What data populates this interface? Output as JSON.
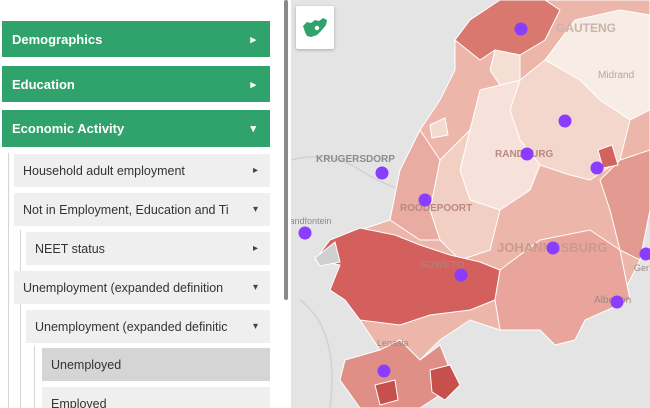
{
  "sidebar": {
    "accordions": [
      {
        "label": "Demographics",
        "icon": "chevron-right-icon"
      },
      {
        "label": "Education",
        "icon": "chevron-right-icon"
      },
      {
        "label": "Economic Activity",
        "icon": "chevron-down-icon"
      }
    ],
    "items": [
      {
        "label": "Household adult employment",
        "icon": "chevron-right-icon"
      },
      {
        "label": "Not in Employment, Education and Ti",
        "icon": "chevron-down-icon"
      },
      {
        "label": "NEET status",
        "icon": "chevron-right-icon"
      },
      {
        "label": "Unemployment (expanded definition",
        "icon": "chevron-down-icon"
      },
      {
        "label": "Unemployment (expanded definitic",
        "icon": "chevron-down-icon"
      },
      {
        "label": "Unemployed",
        "selected": true
      },
      {
        "label": "Employed"
      }
    ]
  },
  "map": {
    "place_labels": [
      "KRUGERSDORP",
      "RANDBURG",
      "ROODEPOORT",
      "SOWETO",
      "JOHANNESBURG",
      "GAUTENG",
      "Midrand",
      "Alberton",
      "Lenasia",
      "Randfontein",
      "Ger"
    ],
    "logo_icon": "south-africa-map-icon"
  },
  "colors": {
    "accent_green": "#2fa36b",
    "marker_purple": "#8b3dff",
    "choropleth_light": "#f6e2da",
    "choropleth_mid": "#e6a29c",
    "choropleth_dark": "#cd5d5c"
  }
}
